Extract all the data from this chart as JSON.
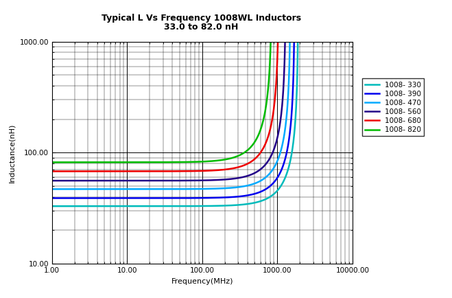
{
  "title_line1": "Typical L Vs Frequency 1008WL Inductors",
  "title_line2": "33.0 to 82.0 nH",
  "xlabel": "Frequency(MHz)",
  "ylabel": "Inductance(nH)",
  "xlim": [
    1.0,
    10000.0
  ],
  "ylim": [
    10.0,
    1000.0
  ],
  "series": [
    {
      "label": "1008- 330",
      "color": "#00BBBB",
      "L0": 33.0,
      "SRF": 1900.0
    },
    {
      "label": "1008- 390",
      "color": "#0000EE",
      "L0": 39.0,
      "SRF": 1700.0
    },
    {
      "label": "1008- 470",
      "color": "#00AAFF",
      "L0": 47.0,
      "SRF": 1500.0
    },
    {
      "label": "1008- 560",
      "color": "#220088",
      "L0": 56.0,
      "SRF": 1300.0
    },
    {
      "label": "1008- 680",
      "color": "#EE0000",
      "L0": 68.0,
      "SRF": 1050.0
    },
    {
      "label": "1008- 820",
      "color": "#00BB00",
      "L0": 82.0,
      "SRF": 850.0
    }
  ],
  "background_color": "#FFFFFF",
  "grid_major_color": "#000000",
  "grid_minor_color": "#000000",
  "grid_major_lw": 0.7,
  "grid_minor_lw": 0.3,
  "title_fontsize": 9,
  "label_fontsize": 8,
  "legend_fontsize": 7.5,
  "tick_fontsize": 7.5,
  "line_width": 1.8
}
